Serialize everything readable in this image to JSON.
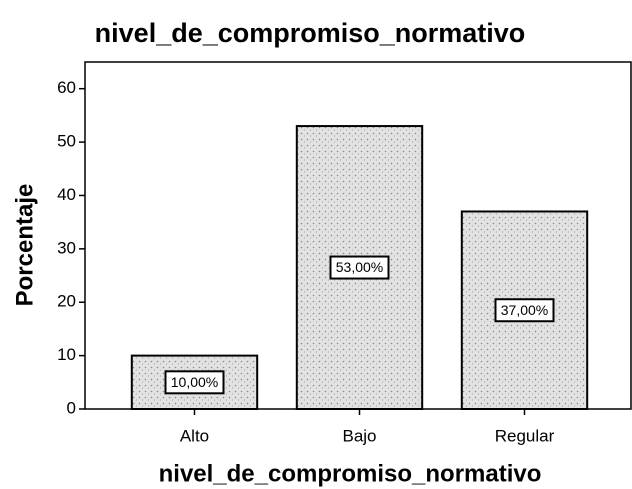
{
  "chart_data": {
    "type": "bar",
    "title": "nivel_de_compromiso_normativo",
    "x_label": "nivel_de_compromiso_normativo",
    "y_label": "Porcentaje",
    "categories": [
      "Alto",
      "Bajo",
      "Regular"
    ],
    "values": [
      10,
      53,
      37
    ],
    "value_labels": [
      "10,00%",
      "53,00%",
      "37,00%"
    ],
    "color": "#d4d4d4",
    "ylim": [
      0,
      65
    ],
    "yticks": [
      0,
      10,
      20,
      30,
      40,
      50,
      60
    ],
    "grid": false
  }
}
